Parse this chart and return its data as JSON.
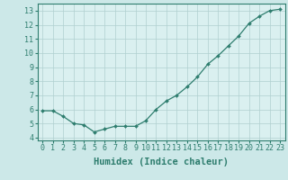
{
  "x": [
    0,
    1,
    2,
    3,
    4,
    5,
    6,
    7,
    8,
    9,
    10,
    11,
    12,
    13,
    14,
    15,
    16,
    17,
    18,
    19,
    20,
    21,
    22,
    23
  ],
  "y": [
    5.9,
    5.9,
    5.5,
    5.0,
    4.9,
    4.4,
    4.6,
    4.8,
    4.8,
    4.8,
    5.2,
    6.0,
    6.6,
    7.0,
    7.6,
    8.3,
    9.2,
    9.8,
    10.5,
    11.2,
    12.1,
    12.6,
    13.0,
    13.1
  ],
  "line_color": "#2e7d6e",
  "marker": "D",
  "markersize": 2.0,
  "linewidth": 0.9,
  "bg_color": "#cce8e8",
  "grid_color": "#b0d0d0",
  "axis_bg": "#daf0f0",
  "xlabel": "Humidex (Indice chaleur)",
  "xlabel_fontsize": 7.5,
  "ylabel_ticks": [
    4,
    5,
    6,
    7,
    8,
    9,
    10,
    11,
    12,
    13
  ],
  "xlim": [
    -0.5,
    23.5
  ],
  "ylim": [
    3.8,
    13.5
  ],
  "xtick_labels": [
    "0",
    "1",
    "2",
    "3",
    "4",
    "5",
    "6",
    "7",
    "8",
    "9",
    "10",
    "11",
    "12",
    "13",
    "14",
    "15",
    "16",
    "17",
    "18",
    "19",
    "20",
    "21",
    "22",
    "23"
  ],
  "tick_fontsize": 6.0,
  "spine_color": "#2e7d6e"
}
